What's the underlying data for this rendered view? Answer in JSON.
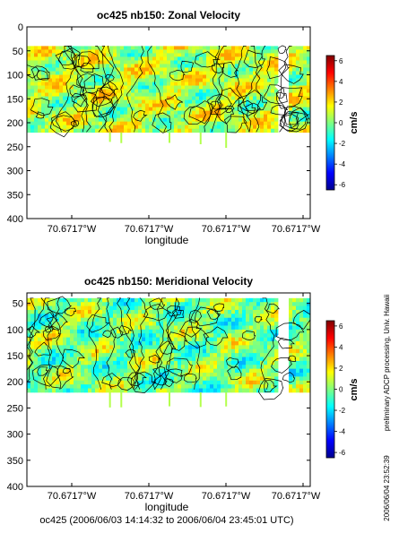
{
  "chart_data": [
    {
      "type": "heatmap",
      "title": "oc425 nb150: Zonal Velocity",
      "xlabel": "longitude",
      "ylabel": "",
      "x_tick_labels": [
        "70.6717°W",
        "70.6717°W",
        "70.6717°W",
        "70.6717°W"
      ],
      "y_ticks": [
        0,
        50,
        100,
        150,
        200,
        250,
        300,
        350,
        400
      ],
      "ylim": [
        400,
        0
      ],
      "y_reversed": true,
      "data_depth_range": [
        40,
        220
      ],
      "colorbar": {
        "label": "cm/s",
        "ticks": [
          6,
          4,
          2,
          0,
          -2,
          -4,
          -6
        ],
        "range": [
          -6.5,
          6.5
        ],
        "colormap": "jet"
      },
      "contours": true
    },
    {
      "type": "heatmap",
      "title": "oc425 nb150: Meridional Velocity",
      "xlabel": "longitude",
      "ylabel": "",
      "x_tick_labels": [
        "70.6717°W",
        "70.6717°W",
        "70.6717°W",
        "70.6717°W"
      ],
      "y_ticks": [
        50,
        100,
        150,
        200,
        250,
        300,
        350,
        400
      ],
      "ylim": [
        400,
        30
      ],
      "y_reversed": true,
      "data_depth_range": [
        40,
        220
      ],
      "colorbar": {
        "label": "cm/s",
        "ticks": [
          6,
          4,
          2,
          0,
          -2,
          -4,
          -6
        ],
        "range": [
          -6.5,
          6.5
        ],
        "colormap": "jet"
      },
      "contours": true
    }
  ],
  "footer": "oc425 (2006/06/03 14:14:32 to 2006/06/04 23:45:01 UTC)",
  "side_note": "preliminary ADCP processing,  Univ. Hawaii",
  "side_date": "2006/06/04 23:52:39"
}
